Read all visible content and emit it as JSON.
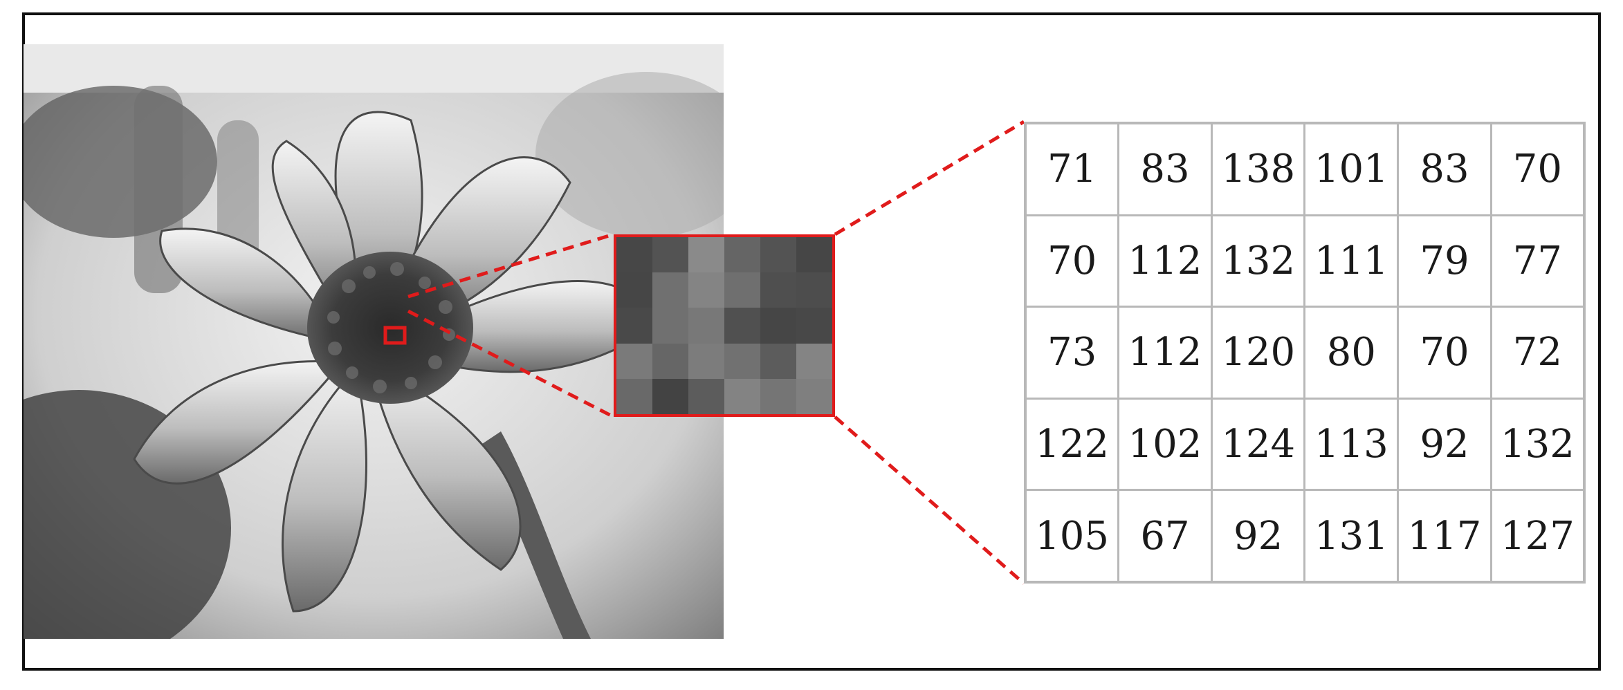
{
  "colors": {
    "highlight": "#e01b1b",
    "frame": "#111111",
    "table_border": "#b8b8b8"
  },
  "pixel_values": [
    [
      71,
      83,
      138,
      101,
      83,
      70
    ],
    [
      70,
      112,
      132,
      111,
      79,
      77
    ],
    [
      73,
      112,
      120,
      80,
      70,
      72
    ],
    [
      122,
      102,
      124,
      113,
      92,
      132
    ],
    [
      105,
      67,
      92,
      131,
      117,
      127
    ]
  ]
}
